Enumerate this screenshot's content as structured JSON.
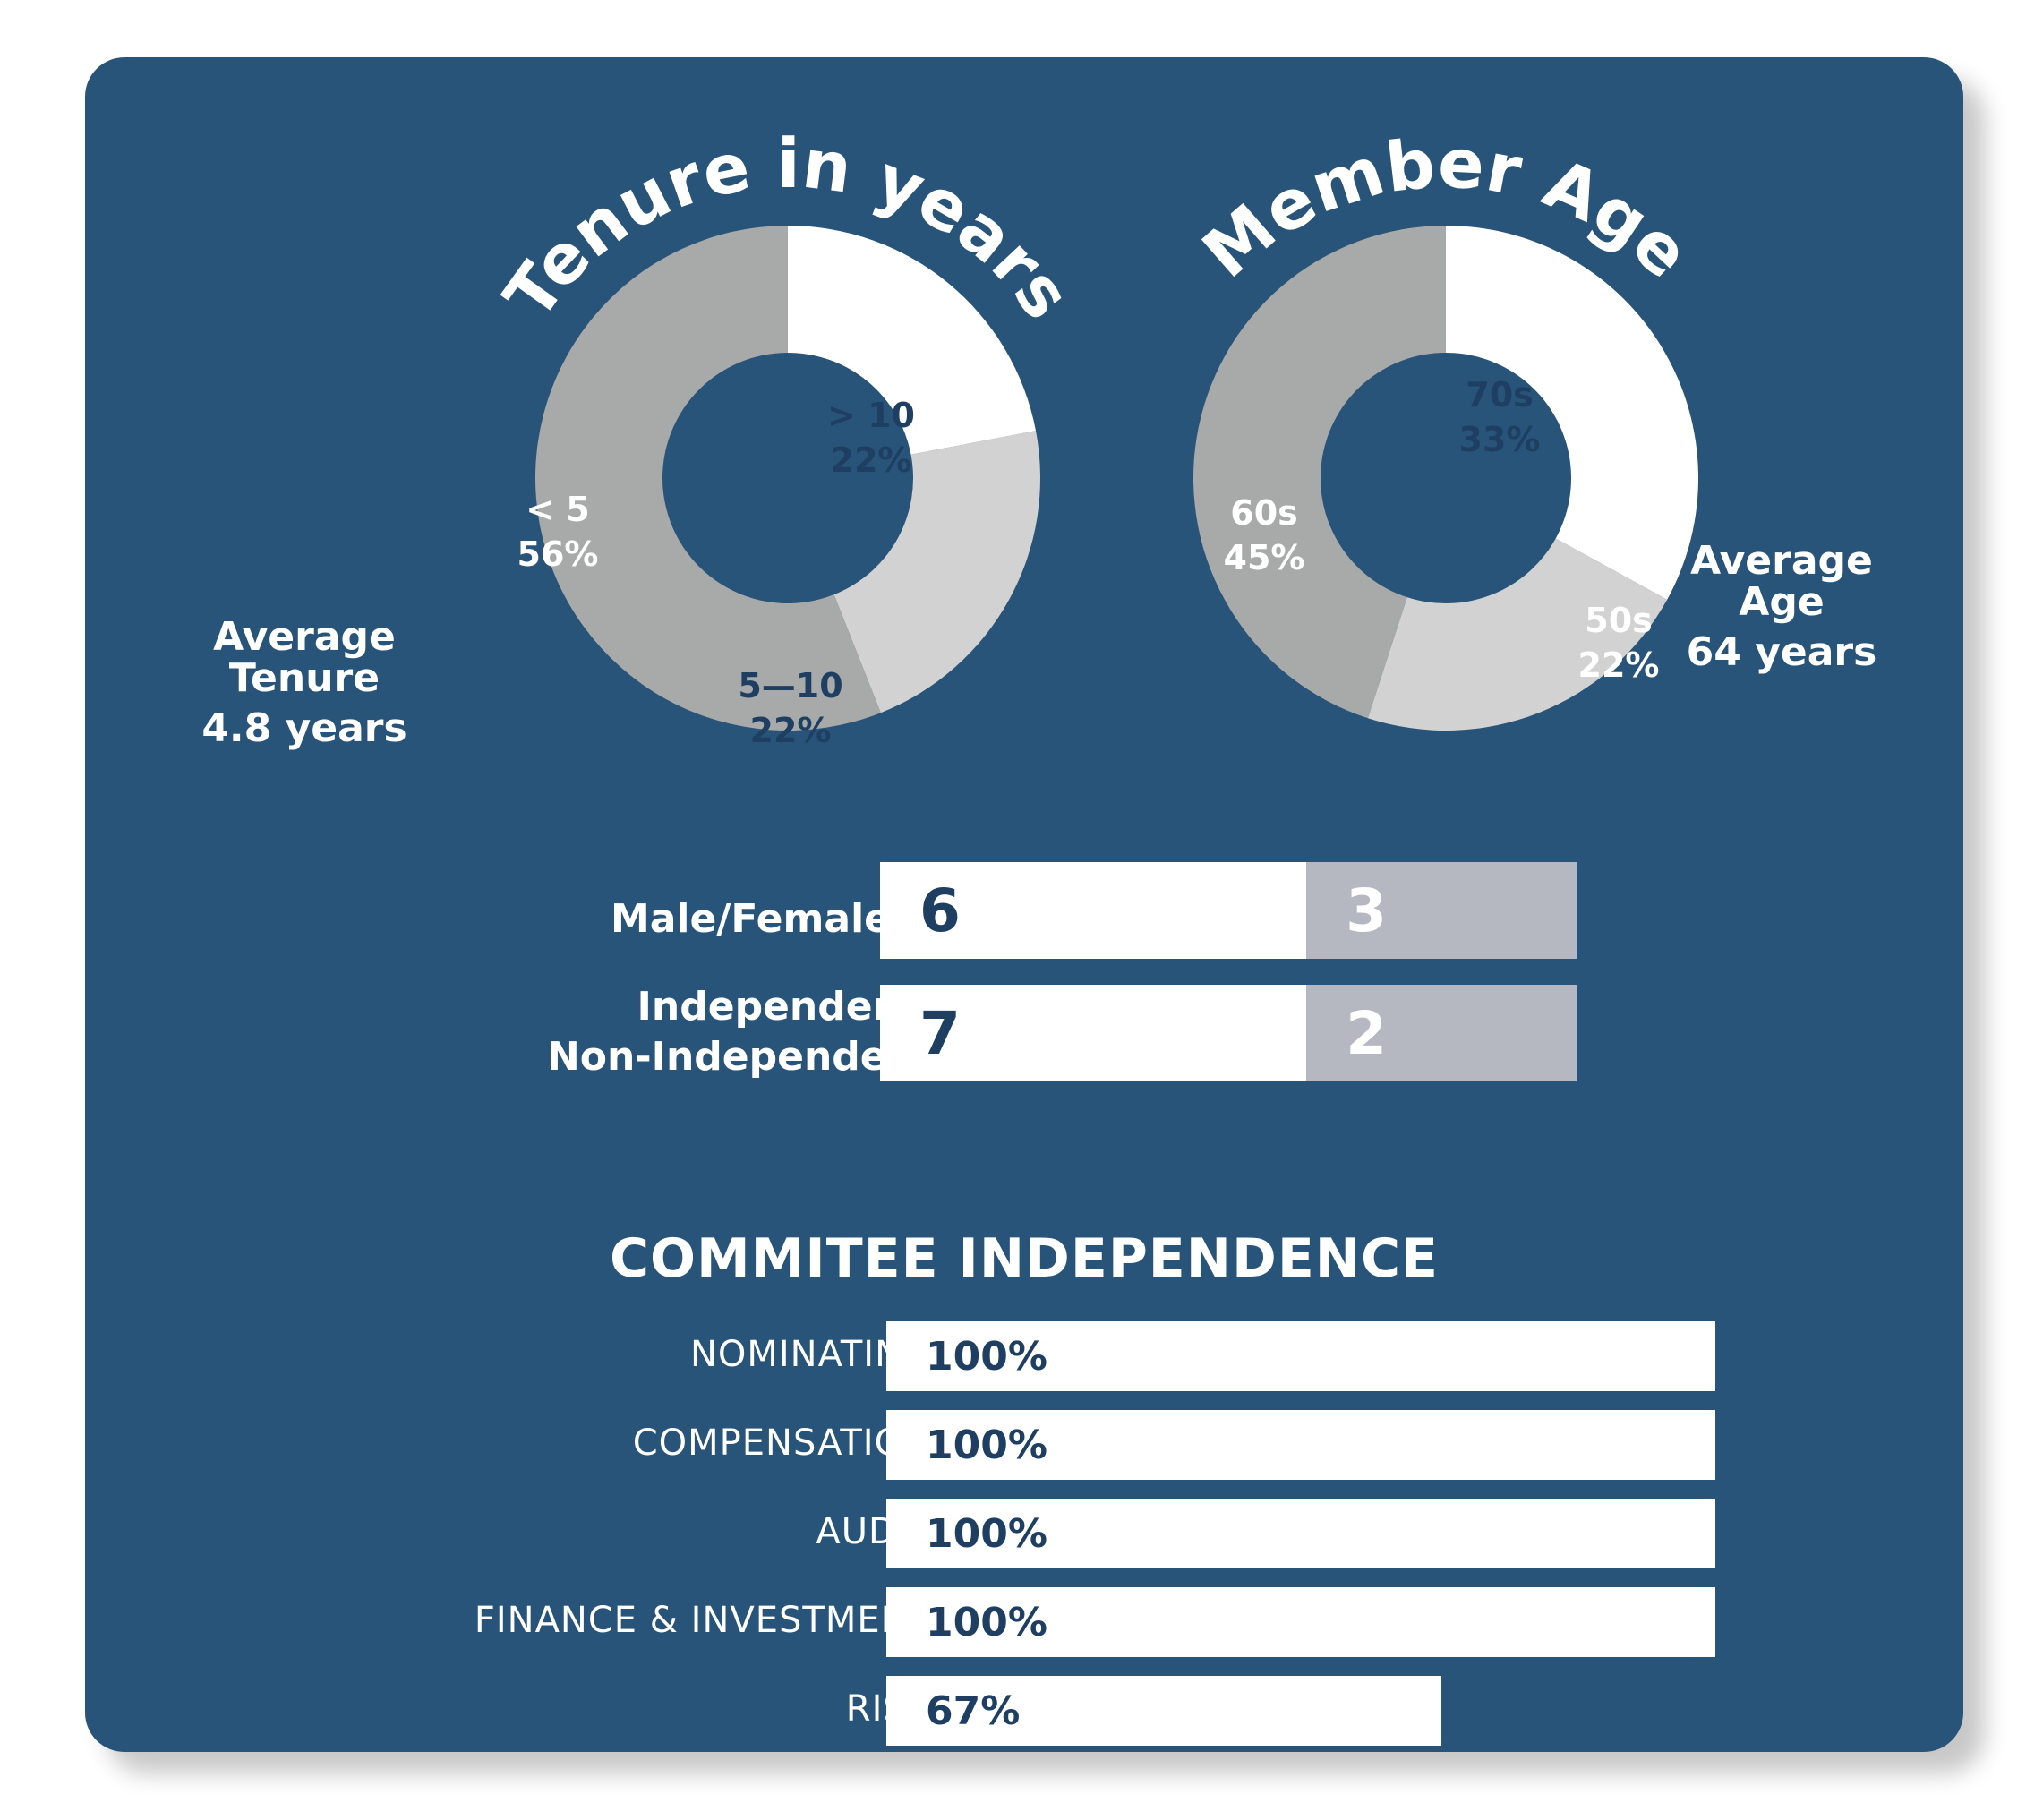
{
  "chart_data": [
    {
      "type": "pie",
      "title": "Tenure in years",
      "slices": [
        {
          "label": "> 10",
          "value": 22,
          "value_label": "22%",
          "color": "#ffffff"
        },
        {
          "label": "5—10",
          "value": 22,
          "value_label": "22%",
          "color": "#d2d2d2"
        },
        {
          "label": "< 5",
          "value": 56,
          "value_label": "56%",
          "color": "#a8a9a9"
        }
      ],
      "summary_label": "Average Tenure",
      "summary_value": "4.8 years"
    },
    {
      "type": "pie",
      "title": "Member Age",
      "slices": [
        {
          "label": "70s",
          "value": 33,
          "value_label": "33%",
          "color": "#ffffff"
        },
        {
          "label": "50s",
          "value": 22,
          "value_label": "22%",
          "color": "#d2d2d2"
        },
        {
          "label": "60s",
          "value": 45,
          "value_label": "45%",
          "color": "#a8a9a9"
        }
      ],
      "summary_label": "Average Age",
      "summary_value": "64 years"
    },
    {
      "type": "bar",
      "orientation": "horizontal-stacked",
      "rows": [
        {
          "label": "Male/Female",
          "values": [
            6,
            3
          ]
        },
        {
          "label": "Independent/ Non-Independent",
          "values": [
            7,
            2
          ]
        }
      ]
    },
    {
      "type": "bar",
      "orientation": "horizontal",
      "title": "COMMITEE INDEPENDENCE",
      "categories": [
        "NOMINATING",
        "COMPENSATION",
        "AUDIT",
        "FINANCE & INVESTMENT",
        "RISK"
      ],
      "values": [
        100,
        100,
        100,
        100,
        67
      ],
      "value_labels": [
        "100%",
        "100%",
        "100%",
        "100%",
        "67%"
      ],
      "xlim": [
        0,
        100
      ]
    }
  ],
  "colors": {
    "panel": "#285479",
    "text_dark": "#1f3f62",
    "white": "#ffffff",
    "grey_bar": "#b5b8c1"
  }
}
